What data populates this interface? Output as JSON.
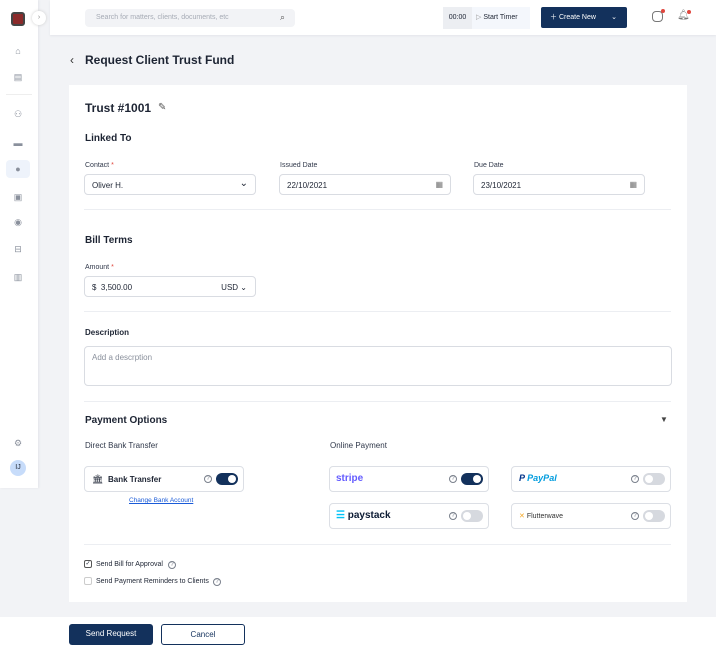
{
  "header": {
    "search_placeholder": "Search for matters, clients, documents, etc",
    "timer": "00:00",
    "start_timer": "Start Timer",
    "create_new": "Create New"
  },
  "sidebar": {
    "avatar": "IJ",
    "items": [
      "home",
      "contacts",
      "people",
      "matters",
      "billing",
      "documents",
      "tasks",
      "vault",
      "reports"
    ]
  },
  "page": {
    "title": "Request Client Trust Fund"
  },
  "trust": {
    "title": "Trust #1001"
  },
  "linked": {
    "heading": "Linked To",
    "contact_label": "Contact",
    "contact_value": "Oliver H.",
    "issued_label": "Issued Date",
    "issued_value": "22/10/2021",
    "due_label": "Due Date",
    "due_value": "23/10/2021"
  },
  "bill": {
    "heading": "Bill Terms",
    "amount_label": "Amount",
    "currency_symbol": "$",
    "amount_value": "3,500.00",
    "currency": "USD"
  },
  "description": {
    "label": "Description",
    "placeholder": "Add a descrption"
  },
  "payment": {
    "heading": "Payment Options",
    "direct_label": "Direct Bank Transfer",
    "online_label": "Online Payment",
    "bank_transfer": "Bank Transfer",
    "bank_enabled": true,
    "change_bank": "Change Bank Account",
    "providers": [
      {
        "name": "stripe",
        "enabled": true
      },
      {
        "name": "PayPal",
        "enabled": false
      },
      {
        "name": "paystack",
        "enabled": false
      },
      {
        "name": "Flutterwave",
        "enabled": false
      }
    ]
  },
  "options": {
    "send_for_approval": "Send Bill for Approval",
    "approval_checked": true,
    "send_reminders": "Send Payment Reminders to Clients",
    "reminders_checked": false
  },
  "footer": {
    "send": "Send Request",
    "cancel": "Cancel"
  },
  "colors": {
    "primary": "#13315c",
    "stripe": "#635bff",
    "paypal_dark": "#003087",
    "paypal_light": "#009cde",
    "paystack": "#00c3f7",
    "flutterwave": "#f5a623"
  }
}
